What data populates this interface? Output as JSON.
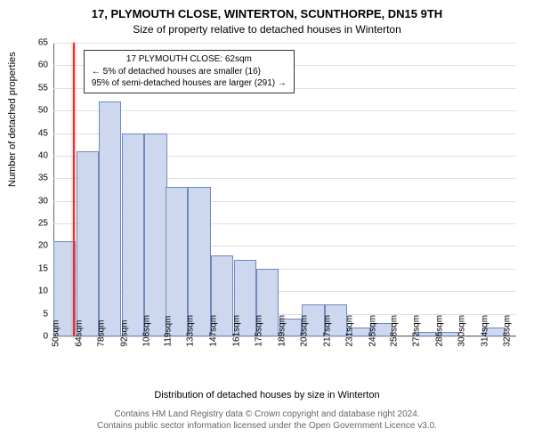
{
  "header": {
    "title": "17, PLYMOUTH CLOSE, WINTERTON, SCUNTHORPE, DN15 9TH",
    "subtitle": "Size of property relative to detached houses in Winterton"
  },
  "axes": {
    "ylabel": "Number of detached properties",
    "xlabel": "Distribution of detached houses by size in Winterton"
  },
  "footer": {
    "line1": "Contains HM Land Registry data © Crown copyright and database right 2024.",
    "line2": "Contains public sector information licensed under the Open Government Licence v3.0."
  },
  "chart": {
    "type": "histogram",
    "background_color": "#ffffff",
    "grid_color": "#e0e0e0",
    "axis_color": "#666666",
    "bar_fill": "#cdd8ee",
    "bar_border": "#6e89c0",
    "ref_color": "#ee3030",
    "font_color": "#000000",
    "tick_fontsize": 10,
    "label_fontsize": 11,
    "title_fontsize": 13,
    "ylim": [
      0,
      65
    ],
    "yticks": [
      0,
      5,
      10,
      15,
      20,
      25,
      30,
      35,
      40,
      45,
      50,
      55,
      60,
      65
    ],
    "xticks": [
      "50sqm",
      "64sqm",
      "78sqm",
      "92sqm",
      "106sqm",
      "119sqm",
      "133sqm",
      "147sqm",
      "161sqm",
      "175sqm",
      "189sqm",
      "203sqm",
      "217sqm",
      "231sqm",
      "245sqm",
      "258sqm",
      "272sqm",
      "286sqm",
      "300sqm",
      "314sqm",
      "328sqm"
    ],
    "x_bin_width_sqm": 13.9,
    "x_domain": [
      50,
      335
    ],
    "bars": [
      {
        "x": 50,
        "count": 21
      },
      {
        "x": 64,
        "count": 41
      },
      {
        "x": 78,
        "count": 52
      },
      {
        "x": 92,
        "count": 45
      },
      {
        "x": 106,
        "count": 45
      },
      {
        "x": 119,
        "count": 33
      },
      {
        "x": 133,
        "count": 33
      },
      {
        "x": 147,
        "count": 18
      },
      {
        "x": 161,
        "count": 17
      },
      {
        "x": 175,
        "count": 15
      },
      {
        "x": 189,
        "count": 4
      },
      {
        "x": 203,
        "count": 7
      },
      {
        "x": 217,
        "count": 7
      },
      {
        "x": 231,
        "count": 2
      },
      {
        "x": 245,
        "count": 3
      },
      {
        "x": 258,
        "count": 0
      },
      {
        "x": 272,
        "count": 1
      },
      {
        "x": 286,
        "count": 1
      },
      {
        "x": 300,
        "count": 0
      },
      {
        "x": 314,
        "count": 2
      },
      {
        "x": 328,
        "count": 0
      }
    ],
    "reference_x": 62,
    "annotation": {
      "lines": [
        "17 PLYMOUTH CLOSE: 62sqm",
        "← 5% of detached houses are smaller (16)",
        "95% of semi-detached houses are larger (291) →"
      ],
      "border_color": "#333333",
      "bg_color": "#ffffff",
      "fontsize": 10
    }
  }
}
